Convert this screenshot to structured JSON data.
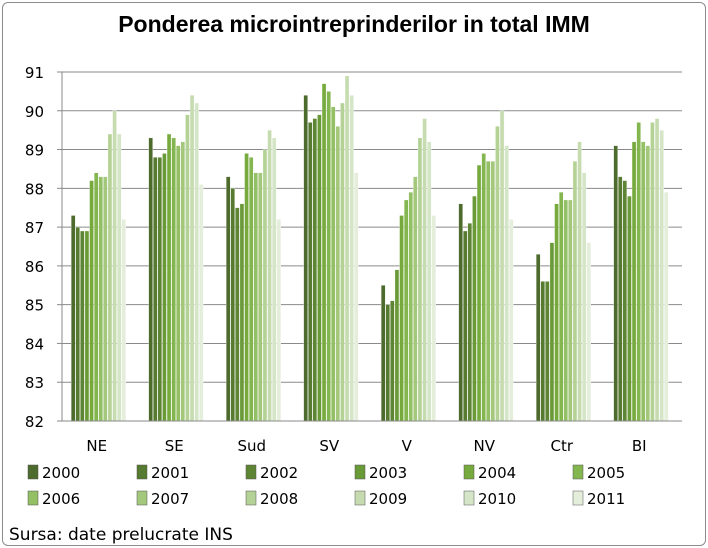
{
  "chart_data": {
    "type": "bar",
    "title": "Ponderea microintreprinderilor in total IMM",
    "categories": [
      "NE",
      "SE",
      "Sud",
      "SV",
      "V",
      "NV",
      "Ctr",
      "BI"
    ],
    "ylim": [
      82,
      91
    ],
    "yticks": [
      "82",
      "83",
      "84",
      "85",
      "86",
      "87",
      "88",
      "89",
      "90",
      "91"
    ],
    "grid": true,
    "legend_position": "bottom",
    "series": [
      {
        "name": "2000",
        "color": "#4d6b2c",
        "values": [
          87.3,
          89.3,
          88.3,
          90.4,
          85.5,
          87.6,
          86.3,
          89.1
        ]
      },
      {
        "name": "2001",
        "color": "#567a30",
        "values": [
          87.0,
          88.8,
          88.0,
          89.7,
          85.0,
          86.9,
          85.6,
          88.3
        ]
      },
      {
        "name": "2002",
        "color": "#5e8533",
        "values": [
          86.9,
          88.8,
          87.5,
          89.8,
          85.1,
          87.1,
          85.6,
          88.2
        ]
      },
      {
        "name": "2003",
        "color": "#6a9a38",
        "values": [
          86.9,
          88.9,
          87.6,
          89.9,
          85.9,
          87.8,
          86.6,
          87.8
        ]
      },
      {
        "name": "2004",
        "color": "#76aa3d",
        "values": [
          88.2,
          89.4,
          88.9,
          90.7,
          87.3,
          88.6,
          87.6,
          89.2
        ]
      },
      {
        "name": "2005",
        "color": "#83b64e",
        "values": [
          88.4,
          89.3,
          88.8,
          90.5,
          87.7,
          88.9,
          87.9,
          89.7
        ]
      },
      {
        "name": "2006",
        "color": "#93bf65",
        "values": [
          88.3,
          89.1,
          88.4,
          90.1,
          87.9,
          88.7,
          87.7,
          89.2
        ]
      },
      {
        "name": "2007",
        "color": "#a3c87c",
        "values": [
          88.3,
          89.2,
          88.4,
          89.6,
          88.3,
          88.7,
          87.7,
          89.1
        ]
      },
      {
        "name": "2008",
        "color": "#b5d296",
        "values": [
          89.4,
          89.9,
          89.0,
          90.2,
          89.3,
          89.6,
          88.7,
          89.7
        ]
      },
      {
        "name": "2009",
        "color": "#c6dcb0",
        "values": [
          90.0,
          90.4,
          89.5,
          90.9,
          89.8,
          90.0,
          89.2,
          89.8
        ]
      },
      {
        "name": "2010",
        "color": "#d5e5c7",
        "values": [
          89.4,
          90.2,
          89.3,
          90.4,
          89.2,
          89.1,
          88.4,
          89.5
        ]
      },
      {
        "name": "2011",
        "color": "#e4eedb",
        "values": [
          87.2,
          88.1,
          87.2,
          88.4,
          87.3,
          87.2,
          86.6,
          87.9
        ]
      }
    ]
  },
  "source_text": "Sursa: date prelucrate INS"
}
